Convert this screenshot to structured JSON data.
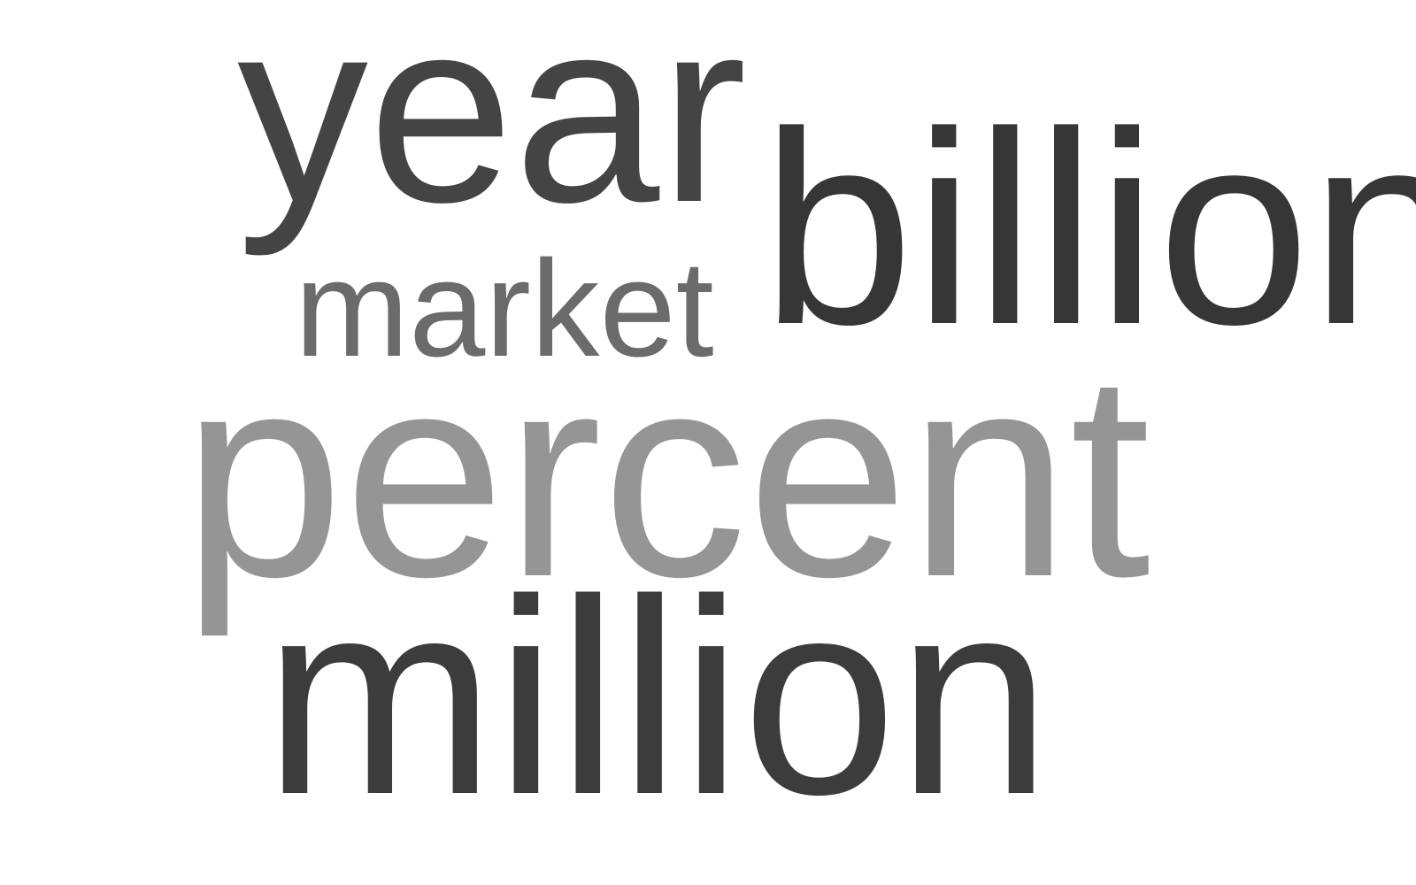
{
  "word_cloud": {
    "words": [
      {
        "id": "year",
        "text": "year",
        "color": "#444444"
      },
      {
        "id": "billion",
        "text": "billion",
        "color": "#363636"
      },
      {
        "id": "market",
        "text": "market",
        "color": "#6b6b6b"
      },
      {
        "id": "percent",
        "text": "percent",
        "color": "#959595"
      },
      {
        "id": "million",
        "text": "million",
        "color": "#3c3c3c"
      }
    ]
  }
}
